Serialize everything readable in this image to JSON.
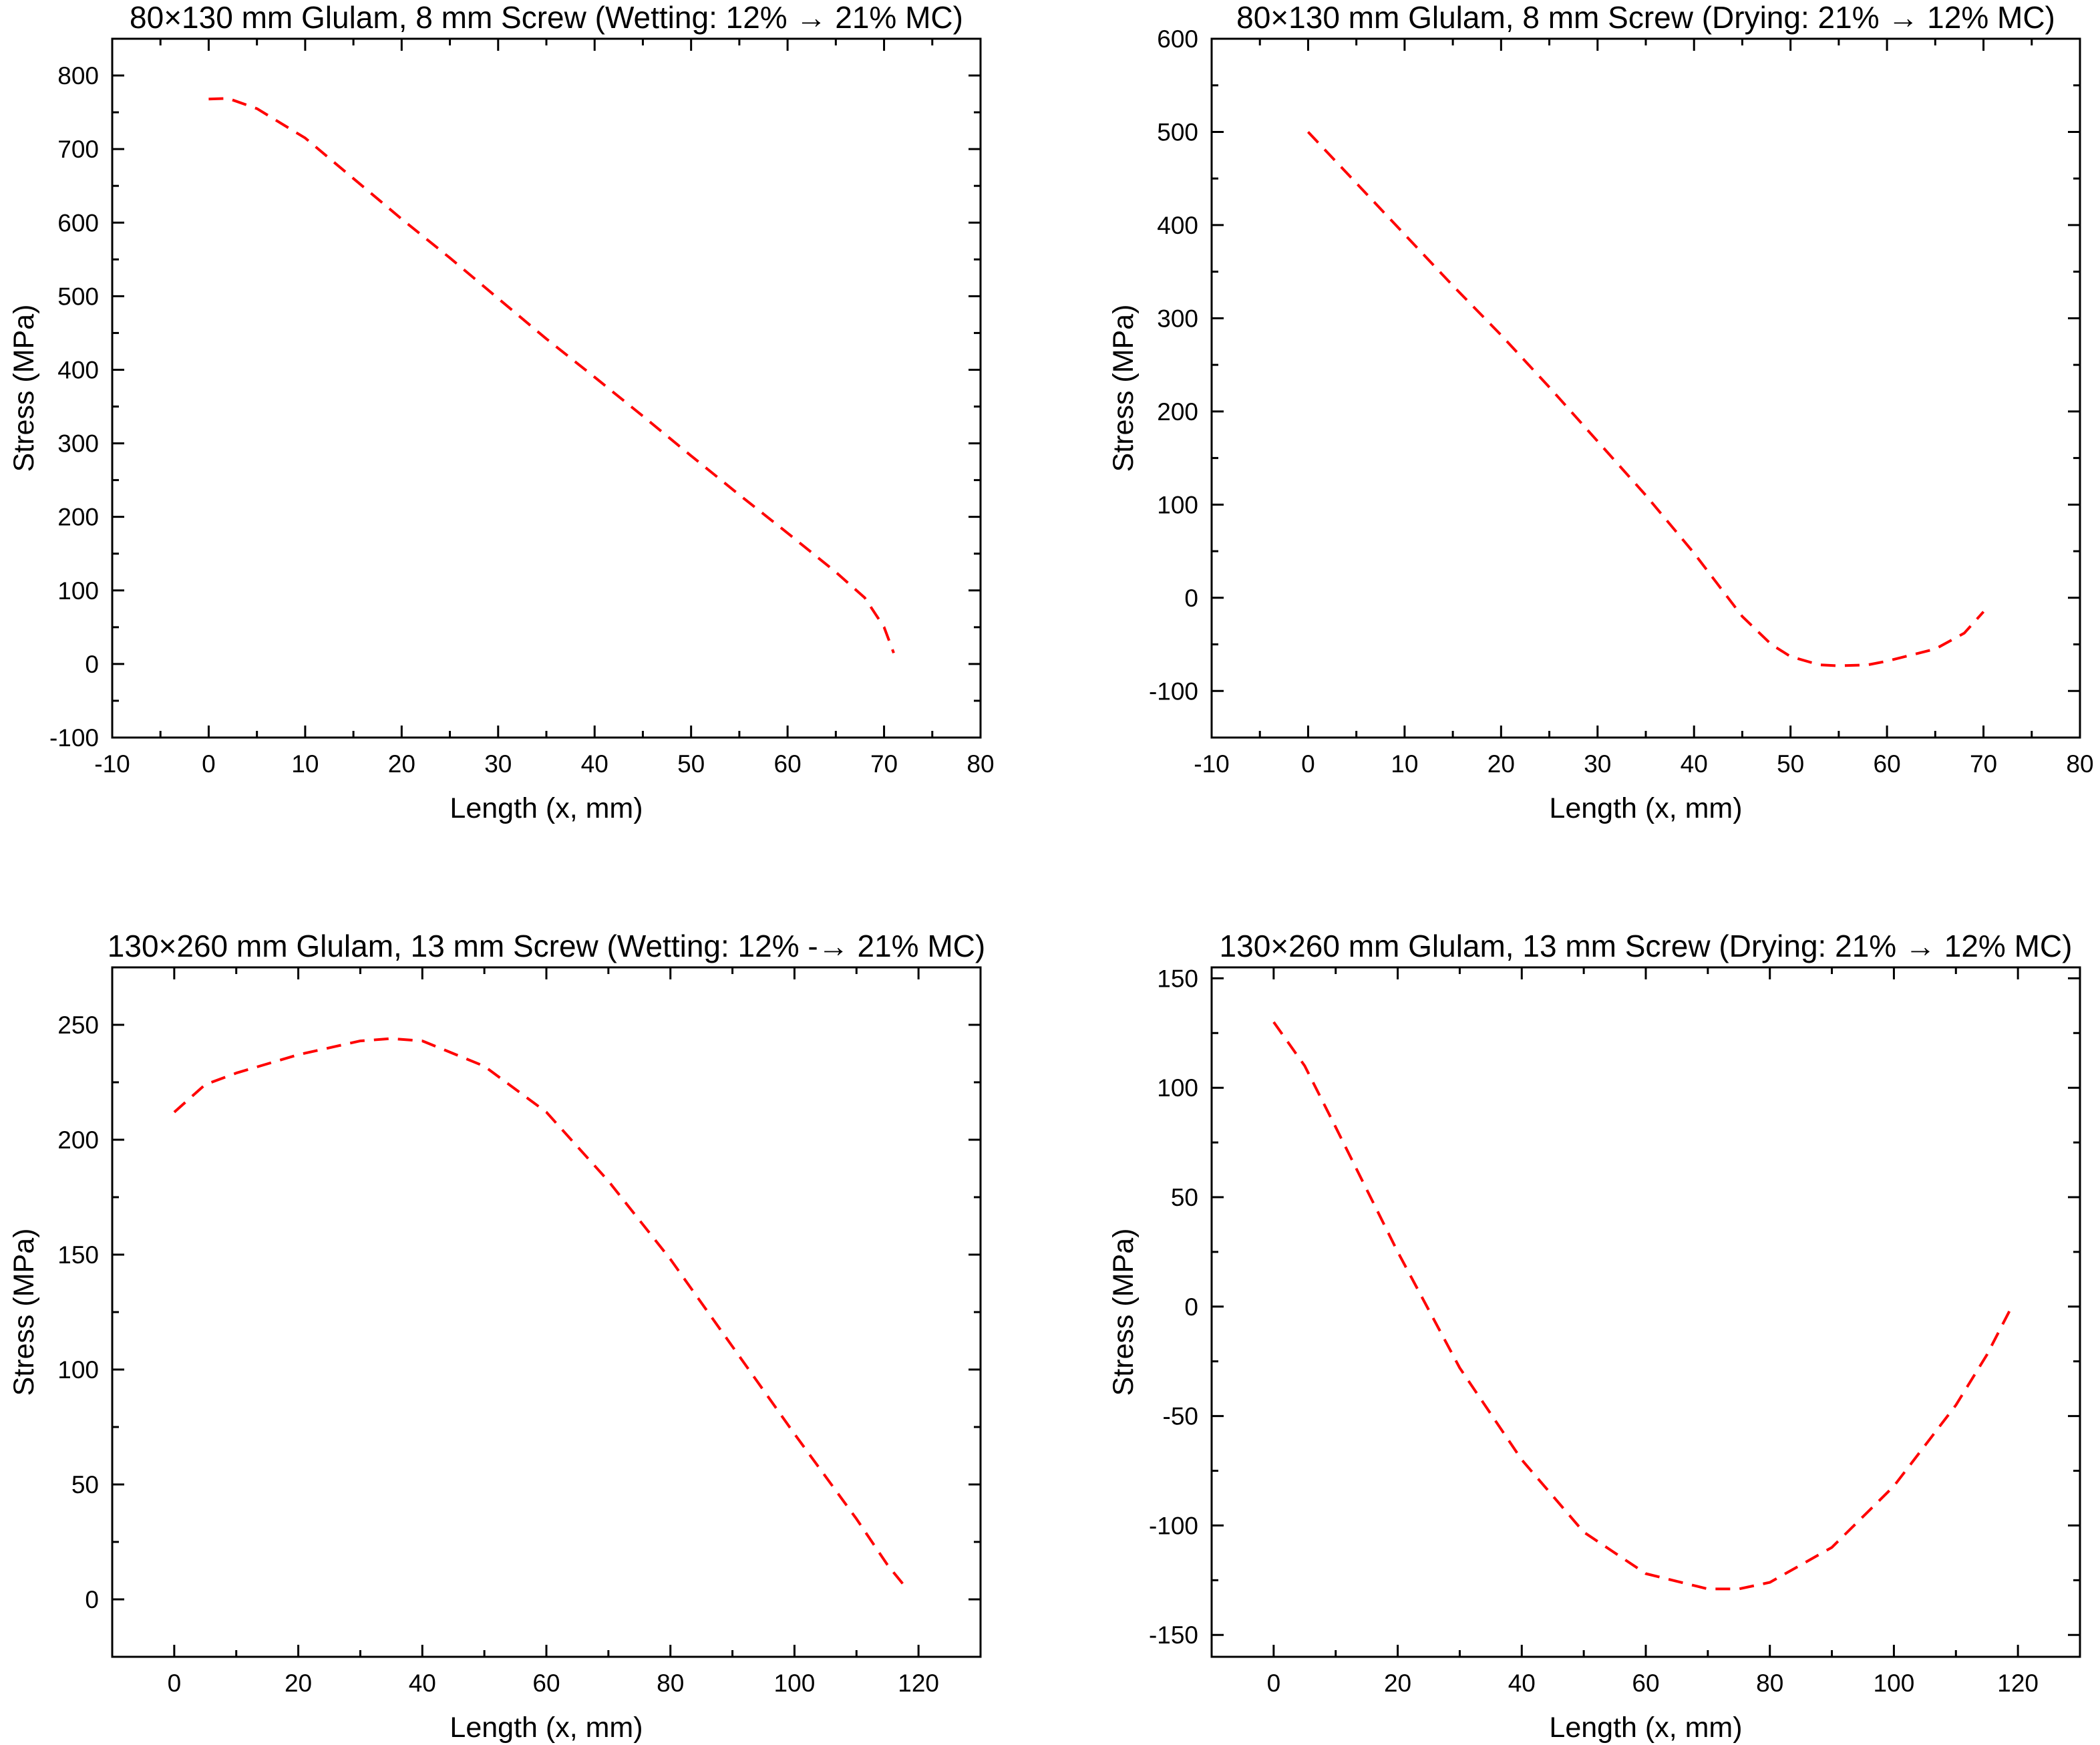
{
  "chart_data": [
    {
      "type": "line",
      "title": "80×130 mm Glulam, 8 mm Screw (Wetting: 12% → 21% MC)",
      "xlabel": "Length (x, mm)",
      "ylabel": "Stress (MPa)",
      "xlim": [
        -10,
        80
      ],
      "ylim": [
        -100,
        850
      ],
      "xticks": [
        -10,
        0,
        10,
        20,
        30,
        40,
        50,
        60,
        70,
        80
      ],
      "xtick_labels": [
        "-10",
        "0",
        "10",
        "20",
        "30",
        "40",
        "50",
        "60",
        "70",
        "80"
      ],
      "yticks": [
        -100,
        0,
        100,
        200,
        300,
        400,
        500,
        600,
        700,
        800
      ],
      "ytick_labels": [
        "-100",
        "0",
        "100",
        "200",
        "300",
        "400",
        "500",
        "600",
        "700",
        "800"
      ],
      "line_color": "#ff0000",
      "line_style": "dashed",
      "series": [
        {
          "name": "stress",
          "x": [
            0,
            2,
            5,
            10,
            15,
            20,
            25,
            30,
            35,
            40,
            45,
            50,
            55,
            60,
            65,
            68,
            70,
            71
          ],
          "y": [
            768,
            769,
            755,
            715,
            660,
            605,
            552,
            497,
            442,
            390,
            337,
            283,
            230,
            178,
            125,
            90,
            50,
            15
          ]
        }
      ]
    },
    {
      "type": "line",
      "title": "80×130 mm Glulam, 8 mm Screw (Drying: 21% → 12% MC)",
      "xlabel": "Length (x, mm)",
      "ylabel": "Stress (MPa)",
      "xlim": [
        -10,
        80
      ],
      "ylim": [
        -150,
        600
      ],
      "xticks": [
        -10,
        0,
        10,
        20,
        30,
        40,
        50,
        60,
        70,
        80
      ],
      "xtick_labels": [
        "-10",
        "0",
        "10",
        "20",
        "30",
        "40",
        "50",
        "60",
        "70",
        "80"
      ],
      "yticks": [
        -100,
        0,
        100,
        200,
        300,
        400,
        500,
        600
      ],
      "ytick_labels": [
        "-100",
        "0",
        "100",
        "200",
        "300",
        "400",
        "500",
        "600"
      ],
      "line_color": "#ff0000",
      "line_style": "dashed",
      "series": [
        {
          "name": "stress",
          "x": [
            0,
            5,
            10,
            15,
            20,
            25,
            30,
            35,
            40,
            45,
            48,
            50,
            53,
            55,
            58,
            60,
            65,
            68,
            70
          ],
          "y": [
            500,
            445,
            390,
            335,
            282,
            226,
            168,
            110,
            48,
            -20,
            -50,
            -63,
            -72,
            -73,
            -72,
            -68,
            -55,
            -38,
            -15
          ]
        }
      ]
    },
    {
      "type": "line",
      "title": "130×260 mm Glulam, 13 mm Screw (Wetting: 12% -→ 21% MC)",
      "xlabel": "Length (x, mm)",
      "ylabel": "Stress (MPa)",
      "xlim": [
        -10,
        130
      ],
      "ylim": [
        -25,
        275
      ],
      "xticks": [
        0,
        20,
        40,
        60,
        80,
        100,
        120
      ],
      "xtick_labels": [
        "0",
        "20",
        "40",
        "60",
        "80",
        "100",
        "120"
      ],
      "yticks": [
        0,
        50,
        100,
        150,
        200,
        250
      ],
      "ytick_labels": [
        "0",
        "50",
        "100",
        "150",
        "200",
        "250"
      ],
      "line_color": "#ff0000",
      "line_style": "dashed",
      "series": [
        {
          "name": "stress",
          "x": [
            0,
            5,
            10,
            20,
            30,
            35,
            40,
            50,
            60,
            70,
            80,
            90,
            100,
            110,
            115,
            118
          ],
          "y": [
            212,
            224,
            229,
            237,
            243,
            244,
            243,
            232,
            212,
            182,
            148,
            110,
            72,
            35,
            15,
            5
          ]
        }
      ]
    },
    {
      "type": "line",
      "title": "130×260 mm Glulam, 13 mm Screw (Drying: 21% → 12% MC)",
      "xlabel": "Length (x, mm)",
      "ylabel": "Stress (MPa)",
      "xlim": [
        -10,
        130
      ],
      "ylim": [
        -160,
        155
      ],
      "xticks": [
        0,
        20,
        40,
        60,
        80,
        100,
        120
      ],
      "xtick_labels": [
        "0",
        "20",
        "40",
        "60",
        "80",
        "100",
        "120"
      ],
      "yticks": [
        -150,
        -100,
        -50,
        0,
        50,
        100,
        150
      ],
      "ytick_labels": [
        "-150",
        "-100",
        "-50",
        "0",
        "50",
        "100",
        "150"
      ],
      "line_color": "#ff0000",
      "line_style": "dashed",
      "series": [
        {
          "name": "stress",
          "x": [
            0,
            5,
            10,
            20,
            30,
            40,
            50,
            60,
            70,
            75,
            80,
            90,
            100,
            110,
            115,
            119
          ],
          "y": [
            130,
            110,
            82,
            25,
            -28,
            -70,
            -103,
            -122,
            -129,
            -129,
            -126,
            -110,
            -82,
            -45,
            -22,
            0
          ]
        }
      ]
    }
  ]
}
